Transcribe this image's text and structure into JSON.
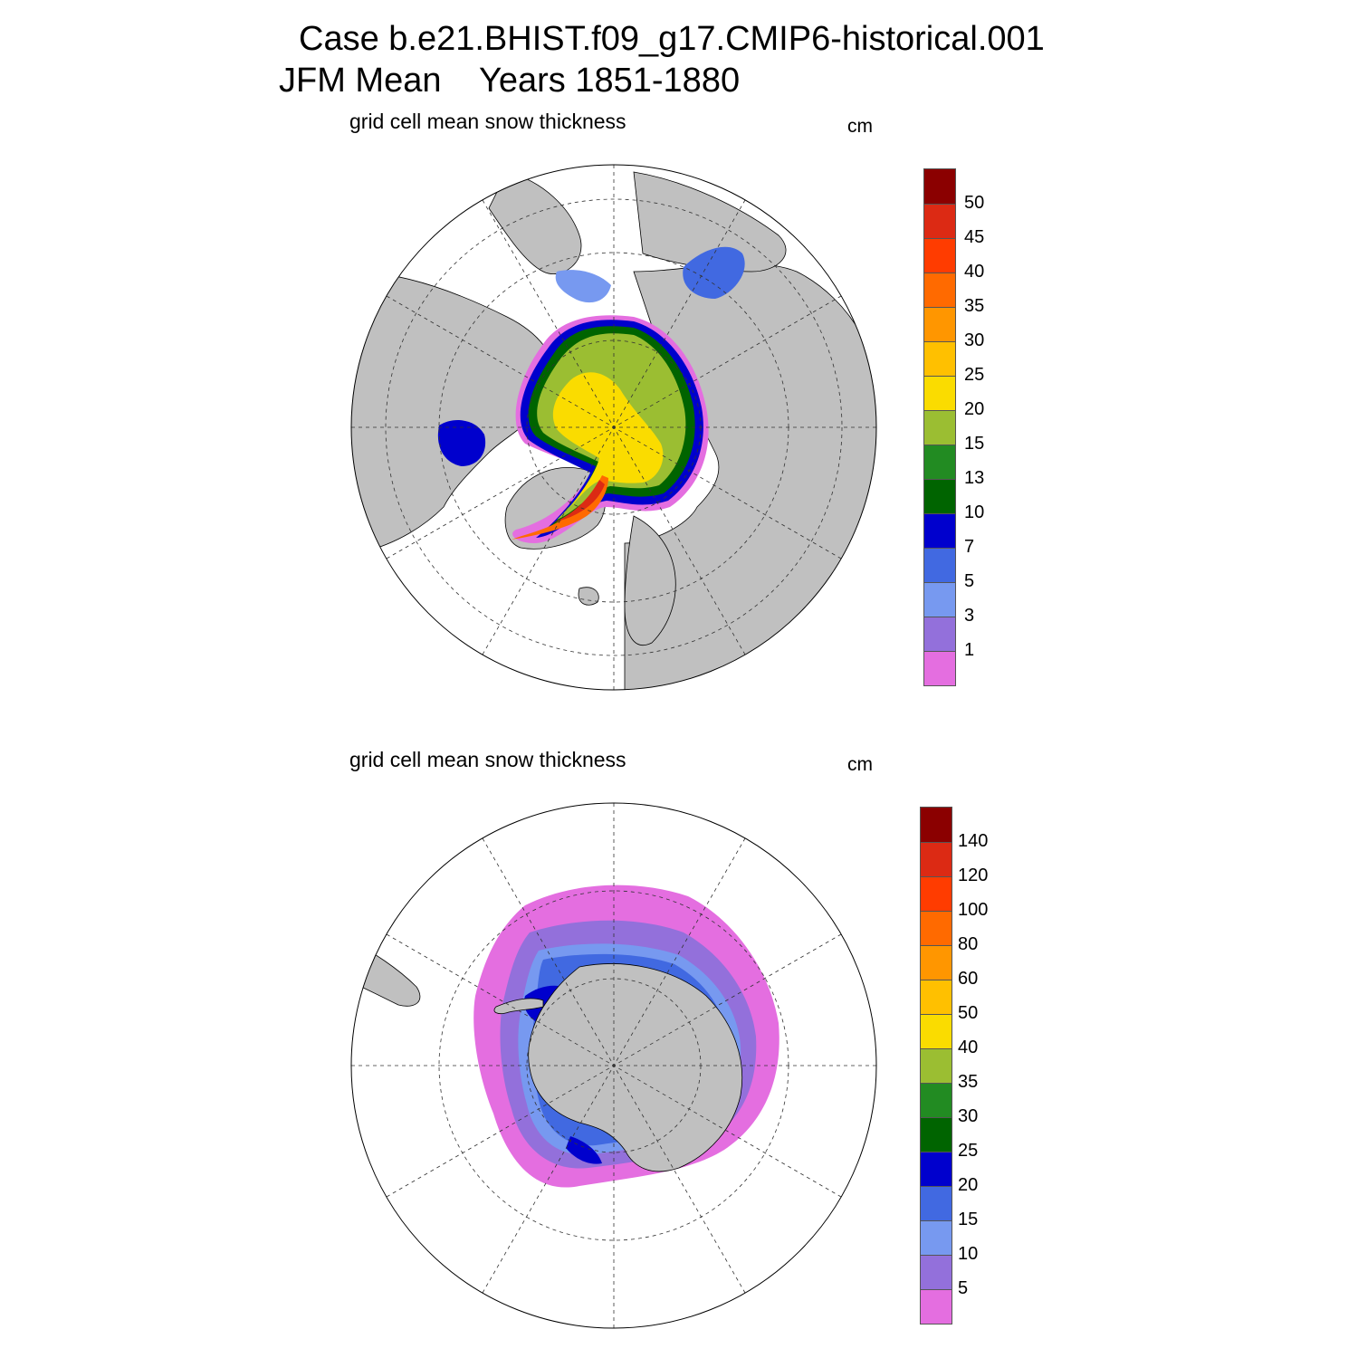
{
  "title": {
    "line1": "Case b.e21.BHIST.f09_g17.CMIP6-historical.001",
    "line2": "JFM Mean    Years 1851-1880"
  },
  "panels": [
    {
      "id": "north",
      "label": "grid cell mean snow thickness",
      "units": "cm",
      "colorbar": {
        "labels": [
          "50",
          "45",
          "40",
          "35",
          "30",
          "25",
          "20",
          "15",
          "13",
          "10",
          "7",
          "5",
          "3",
          "1"
        ],
        "colors": [
          "#8b0000",
          "#dc2a14",
          "#ff3c00",
          "#ff6a00",
          "#ff9600",
          "#ffc000",
          "#fadc00",
          "#9bbe32",
          "#228b22",
          "#006400",
          "#0000cd",
          "#4169e1",
          "#7799f0",
          "#9370db",
          "#e46ee0"
        ]
      }
    },
    {
      "id": "south",
      "label": "grid cell mean snow thickness",
      "units": "cm",
      "colorbar": {
        "labels": [
          "140",
          "120",
          "100",
          "80",
          "60",
          "50",
          "40",
          "35",
          "30",
          "25",
          "20",
          "15",
          "10",
          "5"
        ],
        "colors": [
          "#8b0000",
          "#dc2a14",
          "#ff3c00",
          "#ff6a00",
          "#ff9600",
          "#ffc000",
          "#fadc00",
          "#9bbe32",
          "#228b22",
          "#006400",
          "#0000cd",
          "#4169e1",
          "#7799f0",
          "#9370db",
          "#e46ee0"
        ]
      }
    }
  ]
}
